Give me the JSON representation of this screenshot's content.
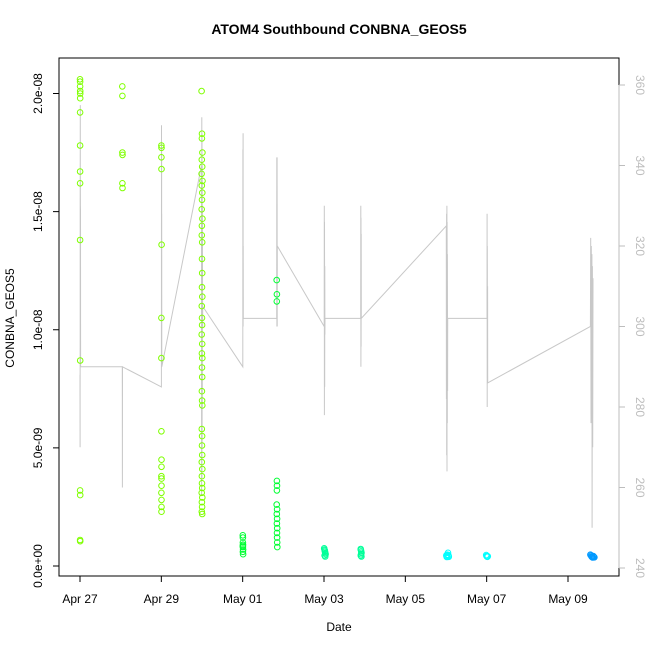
{
  "chart_data": {
    "type": "scatter",
    "title": "ATOM4 Southbound CONBNA_GEOS5",
    "xlabel": "Date",
    "ylabel": "CONBNA_GEOS5",
    "x_ticks": [
      "Apr 27",
      "Apr 29",
      "May 01",
      "May 03",
      "May 05",
      "May 07",
      "May 09"
    ],
    "y_ticks": [
      "0.0e+00",
      "5.0e-09",
      "1.0e-08",
      "1.5e-08",
      "2.0e-08"
    ],
    "y2_ticks": [
      "240",
      "260",
      "280",
      "300",
      "320",
      "340",
      "360"
    ],
    "ylim": [
      0,
      2.1e-08
    ],
    "y2lim": [
      240,
      360
    ],
    "colors": {
      "axis": "#000000",
      "secondary_line": "#c8c8c8",
      "secondary_axis": "#bdbdbd"
    },
    "series": [
      {
        "color": "#7fff00",
        "points": [
          [
            "2016-04-27 00:00",
            2.06e-08
          ],
          [
            "2016-04-27 00:03",
            2.05e-08
          ],
          [
            "2016-04-27 00:05",
            2.03e-08
          ],
          [
            "2016-04-27 00:06",
            2.01e-08
          ],
          [
            "2016-04-27 00:07",
            2e-08
          ],
          [
            "2016-04-27 00:08",
            1.98e-08
          ],
          [
            "2016-04-27 00:04",
            1.92e-08
          ],
          [
            "2016-04-27 00:02",
            1.78e-08
          ],
          [
            "2016-04-27 00:02",
            1.67e-08
          ],
          [
            "2016-04-27 00:03",
            1.62e-08
          ],
          [
            "2016-04-27 00:05",
            1.38e-08
          ],
          [
            "2016-04-27 00:06",
            8.7e-09
          ],
          [
            "2016-04-27 00:04",
            3.2e-09
          ],
          [
            "2016-04-27 00:07",
            3e-09
          ],
          [
            "2016-04-27 00:05",
            1.1e-09
          ],
          [
            "2016-04-27 00:06",
            1.05e-09
          ],
          [
            "2016-04-28 00:58",
            2.03e-08
          ],
          [
            "2016-04-28 01:00",
            1.99e-08
          ],
          [
            "2016-04-28 01:00",
            1.75e-08
          ],
          [
            "2016-04-28 01:02",
            1.74e-08
          ],
          [
            "2016-04-28 01:00",
            1.62e-08
          ],
          [
            "2016-04-28 01:02",
            1.6e-08
          ],
          [
            "2016-04-29 00:00",
            1.78e-08
          ],
          [
            "2016-04-29 00:05",
            1.77e-08
          ],
          [
            "2016-04-29 00:00",
            1.73e-08
          ],
          [
            "2016-04-29 00:02",
            1.68e-08
          ],
          [
            "2016-04-29 00:07",
            1.36e-08
          ],
          [
            "2016-04-29 00:00",
            1.05e-08
          ],
          [
            "2016-04-29 00:01",
            8.8e-09
          ],
          [
            "2016-04-29 00:00",
            5.7e-09
          ],
          [
            "2016-04-29 00:02",
            4.5e-09
          ],
          [
            "2016-04-29 00:03",
            4.2e-09
          ],
          [
            "2016-04-29 00:00",
            3.8e-09
          ],
          [
            "2016-04-29 00:05",
            3.7e-09
          ],
          [
            "2016-04-29 00:02",
            3.4e-09
          ],
          [
            "2016-04-29 00:00",
            3.1e-09
          ],
          [
            "2016-04-29 00:03",
            2.8e-09
          ],
          [
            "2016-04-29 00:05",
            2.5e-09
          ],
          [
            "2016-04-29 00:02",
            2.3e-09
          ],
          [
            "2016-04-29 23:41",
            2.01e-08
          ],
          [
            "2016-04-29 23:56",
            1.83e-08
          ],
          [
            "2016-04-29 23:52",
            1.81e-08
          ],
          [
            "2016-04-30 00:10",
            1.75e-08
          ],
          [
            "2016-04-29 23:48",
            1.72e-08
          ],
          [
            "2016-04-30 00:05",
            1.69e-08
          ],
          [
            "2016-04-29 23:42",
            1.66e-08
          ],
          [
            "2016-04-30 00:14",
            1.63e-08
          ],
          [
            "2016-04-29 23:51",
            1.61e-08
          ],
          [
            "2016-04-30 00:06",
            1.58e-08
          ],
          [
            "2016-04-29 23:58",
            1.55e-08
          ],
          [
            "2016-04-29 23:45",
            1.51e-08
          ],
          [
            "2016-04-30 00:10",
            1.47e-08
          ],
          [
            "2016-04-29 23:54",
            1.44e-08
          ],
          [
            "2016-04-29 23:48",
            1.4e-08
          ],
          [
            "2016-04-30 00:02",
            1.37e-08
          ],
          [
            "2016-04-29 23:55",
            1.3e-08
          ],
          [
            "2016-04-30 00:05",
            1.24e-08
          ],
          [
            "2016-04-29 23:57",
            1.18e-08
          ],
          [
            "2016-04-30 00:06",
            1.14e-08
          ],
          [
            "2016-04-29 23:48",
            1.1e-08
          ],
          [
            "2016-04-29 23:55",
            1.05e-08
          ],
          [
            "2016-04-30 00:00",
            1.02e-08
          ],
          [
            "2016-04-29 23:47",
            9.8e-09
          ],
          [
            "2016-04-30 00:03",
            9.4e-09
          ],
          [
            "2016-04-29 23:52",
            9e-09
          ],
          [
            "2016-04-30 00:08",
            8.8e-09
          ],
          [
            "2016-04-29 23:57",
            8.4e-09
          ],
          [
            "2016-04-30 00:04",
            8e-09
          ],
          [
            "2016-04-29 23:54",
            7.4e-09
          ],
          [
            "2016-04-30 00:00",
            7e-09
          ],
          [
            "2016-04-30 00:06",
            6.8e-09
          ],
          [
            "2016-04-29 23:50",
            5.8e-09
          ],
          [
            "2016-04-30 00:01",
            5.5e-09
          ],
          [
            "2016-04-29 23:56",
            5.1e-09
          ],
          [
            "2016-04-30 00:03",
            4.7e-09
          ],
          [
            "2016-04-29 23:48",
            4.4e-09
          ],
          [
            "2016-04-30 00:06",
            4.1e-09
          ],
          [
            "2016-04-29 23:52",
            3.8e-09
          ],
          [
            "2016-04-29 23:58",
            3.5e-09
          ],
          [
            "2016-04-30 00:04",
            3.3e-09
          ],
          [
            "2016-04-29 23:46",
            3.1e-09
          ],
          [
            "2016-04-30 00:08",
            2.9e-09
          ],
          [
            "2016-04-29 23:54",
            2.7e-09
          ],
          [
            "2016-04-30 00:01",
            2.5e-09
          ],
          [
            "2016-04-29 23:50",
            2.3e-09
          ],
          [
            "2016-04-30 00:05",
            2.2e-09
          ]
        ]
      },
      {
        "color": "#00ff33",
        "points": [
          [
            "2016-05-01 00:00",
            1.3e-09
          ],
          [
            "2016-05-01 00:05",
            1.2e-09
          ],
          [
            "2016-05-01 00:02",
            1e-09
          ],
          [
            "2016-05-01 00:08",
            9e-10
          ],
          [
            "2016-05-01 00:05",
            8e-10
          ],
          [
            "2016-05-01 00:10",
            7e-10
          ],
          [
            "2016-05-01 00:04",
            6e-10
          ],
          [
            "2016-05-01 00:12",
            5e-10
          ],
          [
            "2016-05-01 00:00",
            8.5e-10
          ],
          [
            "2016-05-01 20:00",
            1.21e-08
          ],
          [
            "2016-05-01 20:06",
            1.15e-08
          ],
          [
            "2016-05-01 20:03",
            1.12e-08
          ],
          [
            "2016-05-01 20:05",
            3.6e-09
          ],
          [
            "2016-05-01 20:10",
            3.4e-09
          ],
          [
            "2016-05-01 20:08",
            3.2e-09
          ],
          [
            "2016-05-01 20:00",
            2.6e-09
          ],
          [
            "2016-05-01 20:15",
            2.4e-09
          ],
          [
            "2016-05-01 20:04",
            2.2e-09
          ],
          [
            "2016-05-01 20:12",
            2e-09
          ],
          [
            "2016-05-01 20:06",
            1.8e-09
          ],
          [
            "2016-05-01 20:16",
            1.6e-09
          ],
          [
            "2016-05-01 20:10",
            1.4e-09
          ],
          [
            "2016-05-01 20:14",
            1.2e-09
          ],
          [
            "2016-05-01 20:18",
            1e-09
          ],
          [
            "2016-05-01 20:20",
            8e-10
          ]
        ]
      },
      {
        "color": "#00ff99",
        "points": [
          [
            "2016-05-03 00:00",
            7.5e-10
          ],
          [
            "2016-05-03 00:10",
            7e-10
          ],
          [
            "2016-05-03 00:20",
            6.5e-10
          ],
          [
            "2016-05-03 00:30",
            6e-10
          ],
          [
            "2016-05-03 00:40",
            5.5e-10
          ],
          [
            "2016-05-03 00:50",
            5e-10
          ],
          [
            "2016-05-03 00:15",
            4.5e-10
          ],
          [
            "2016-05-03 00:35",
            4e-10
          ],
          [
            "2016-05-03 21:30",
            7.2e-10
          ],
          [
            "2016-05-03 21:40",
            6.8e-10
          ],
          [
            "2016-05-03 21:50",
            6.2e-10
          ],
          [
            "2016-05-03 22:00",
            5.6e-10
          ],
          [
            "2016-05-03 21:45",
            5e-10
          ],
          [
            "2016-05-03 21:35",
            4.4e-10
          ],
          [
            "2016-05-03 21:55",
            4e-10
          ]
        ]
      },
      {
        "color": "#00ffff",
        "points": [
          [
            "2016-05-06 00:00",
            4.5e-10
          ],
          [
            "2016-05-06 00:10",
            4e-10
          ],
          [
            "2016-05-06 00:20",
            3.8e-10
          ],
          [
            "2016-05-06 00:30",
            4.8e-10
          ],
          [
            "2016-05-06 01:00",
            5.6e-10
          ],
          [
            "2016-05-06 01:10",
            4.6e-10
          ],
          [
            "2016-05-06 01:20",
            4.2e-10
          ],
          [
            "2016-05-06 01:30",
            3.9e-10
          ],
          [
            "2016-05-06 23:30",
            4.6e-10
          ],
          [
            "2016-05-06 23:45",
            4.2e-10
          ],
          [
            "2016-05-07 00:00",
            4e-10
          ],
          [
            "2016-05-07 00:15",
            3.9e-10
          ],
          [
            "2016-05-07 00:30",
            4.1e-10
          ]
        ]
      },
      {
        "color": "#0099ff",
        "points": [
          [
            "2016-05-09 13:00",
            4.8e-10
          ],
          [
            "2016-05-09 13:20",
            4.4e-10
          ],
          [
            "2016-05-09 13:40",
            4e-10
          ],
          [
            "2016-05-09 14:00",
            3.8e-10
          ],
          [
            "2016-05-09 14:20",
            3.6e-10
          ],
          [
            "2016-05-09 14:40",
            4.2e-10
          ],
          [
            "2016-05-09 15:00",
            3.9e-10
          ],
          [
            "2016-05-09 15:20",
            3.7e-10
          ]
        ]
      }
    ],
    "secondary_series": {
      "color": "#c8c8c8",
      "points": [
        [
          "2016-04-27 00:00",
          288
        ],
        [
          "2016-04-27 00:03",
          270
        ],
        [
          "2016-04-27 00:05",
          282
        ],
        [
          "2016-04-27 00:07",
          300
        ],
        [
          "2016-04-27 00:08",
          330
        ],
        [
          "2016-04-27 00:10",
          355
        ],
        [
          "2016-04-27 00:12",
          340
        ],
        [
          "2016-04-27 00:14",
          330
        ],
        [
          "2016-04-27 00:16",
          329
        ],
        [
          "2016-04-27 00:20",
          290
        ],
        [
          "2016-04-28 00:55",
          290
        ],
        [
          "2016-04-28 01:00",
          260
        ],
        [
          "2016-04-28 01:05",
          290
        ],
        [
          "2016-04-29 00:00",
          285
        ],
        [
          "2016-04-29 00:04",
          350
        ],
        [
          "2016-04-29 00:06",
          300
        ],
        [
          "2016-04-29 00:08",
          345
        ],
        [
          "2016-04-29 00:10",
          298
        ],
        [
          "2016-04-29 00:12",
          328
        ],
        [
          "2016-04-29 00:14",
          290
        ],
        [
          "2016-04-29 23:40",
          340
        ],
        [
          "2016-04-29 23:44",
          258
        ],
        [
          "2016-04-29 23:48",
          352
        ],
        [
          "2016-04-29 23:52",
          262
        ],
        [
          "2016-04-29 23:56",
          348
        ],
        [
          "2016-04-30 00:00",
          270
        ],
        [
          "2016-04-30 00:04",
          340
        ],
        [
          "2016-04-30 00:08",
          280
        ],
        [
          "2016-04-30 00:12",
          330
        ],
        [
          "2016-04-30 00:16",
          300
        ],
        [
          "2016-04-30 00:20",
          305
        ],
        [
          "2016-05-01 00:00",
          290
        ],
        [
          "2016-05-01 00:03",
          344
        ],
        [
          "2016-05-01 00:06",
          302
        ],
        [
          "2016-05-01 00:09",
          348
        ],
        [
          "2016-05-01 00:12",
          300
        ],
        [
          "2016-05-01 00:15",
          320
        ],
        [
          "2016-05-01 00:18",
          302
        ],
        [
          "2016-05-01 20:00",
          302
        ],
        [
          "2016-05-01 20:03",
          342
        ],
        [
          "2016-05-01 20:06",
          300
        ],
        [
          "2016-05-01 20:09",
          340
        ],
        [
          "2016-05-01 20:12",
          302
        ],
        [
          "2016-05-01 20:15",
          342
        ],
        [
          "2016-05-01 20:18",
          300
        ],
        [
          "2016-05-01 20:21",
          320
        ],
        [
          "2016-05-03 00:00",
          300
        ],
        [
          "2016-05-03 00:04",
          330
        ],
        [
          "2016-05-03 00:08",
          278
        ],
        [
          "2016-05-03 00:12",
          326
        ],
        [
          "2016-05-03 00:16",
          285
        ],
        [
          "2016-05-03 00:20",
          315
        ],
        [
          "2016-05-03 00:24",
          298
        ],
        [
          "2016-05-03 00:28",
          302
        ],
        [
          "2016-05-03 21:30",
          302
        ],
        [
          "2016-05-03 21:34",
          330
        ],
        [
          "2016-05-03 21:38",
          290
        ],
        [
          "2016-05-03 21:42",
          327
        ],
        [
          "2016-05-03 21:46",
          295
        ],
        [
          "2016-05-03 21:50",
          323
        ],
        [
          "2016-05-03 21:54",
          302
        ],
        [
          "2016-05-06 00:00",
          325
        ],
        [
          "2016-05-06 00:05",
          282
        ],
        [
          "2016-05-06 00:10",
          328
        ],
        [
          "2016-05-06 00:15",
          268
        ],
        [
          "2016-05-06 00:20",
          330
        ],
        [
          "2016-05-06 00:25",
          264
        ],
        [
          "2016-05-06 00:30",
          326
        ],
        [
          "2016-05-06 00:35",
          276
        ],
        [
          "2016-05-06 00:40",
          318
        ],
        [
          "2016-05-06 00:45",
          284
        ],
        [
          "2016-05-06 00:50",
          302
        ],
        [
          "2016-05-07 00:00",
          302
        ],
        [
          "2016-05-07 00:04",
          328
        ],
        [
          "2016-05-07 00:08",
          280
        ],
        [
          "2016-05-07 00:12",
          320
        ],
        [
          "2016-05-07 00:16",
          290
        ],
        [
          "2016-05-07 00:20",
          310
        ],
        [
          "2016-05-07 00:24",
          286
        ],
        [
          "2016-05-09 13:00",
          300
        ],
        [
          "2016-05-09 13:10",
          322
        ],
        [
          "2016-05-09 13:20",
          276
        ],
        [
          "2016-05-09 13:30",
          320
        ],
        [
          "2016-05-09 13:40",
          280
        ],
        [
          "2016-05-09 13:50",
          318
        ],
        [
          "2016-05-09 14:00",
          250
        ],
        [
          "2016-05-09 14:10",
          315
        ],
        [
          "2016-05-09 14:20",
          270
        ],
        [
          "2016-05-09 14:30",
          312
        ]
      ]
    }
  }
}
